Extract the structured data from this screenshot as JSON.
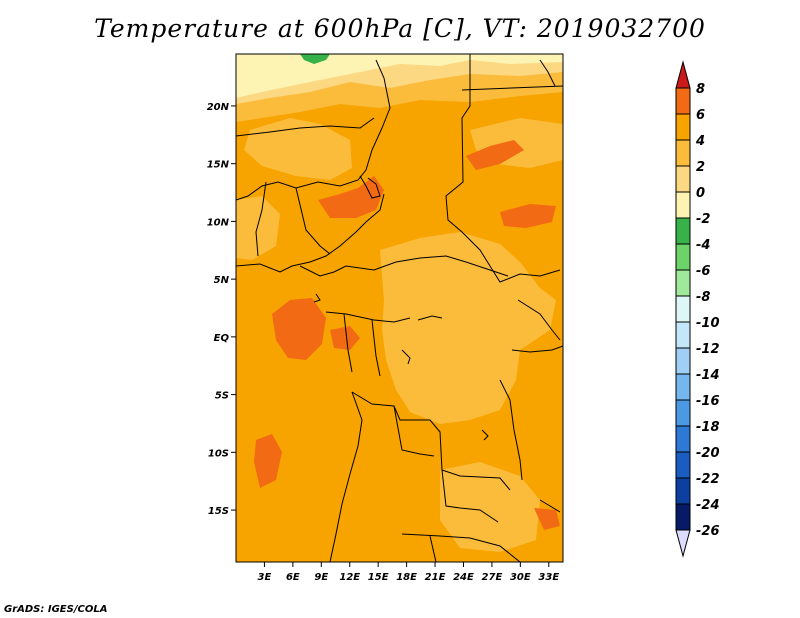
{
  "title": "Temperature at 600hPa [C], VT: 2019032700",
  "credit": "GrADS: IGES/COLA",
  "map": {
    "lon_range": [
      0,
      34.5
    ],
    "lat_range": [
      -19.5,
      24.5
    ],
    "lon_ticks": [
      {
        "value": 3,
        "label": "3E"
      },
      {
        "value": 6,
        "label": "6E"
      },
      {
        "value": 9,
        "label": "9E"
      },
      {
        "value": 12,
        "label": "12E"
      },
      {
        "value": 15,
        "label": "15E"
      },
      {
        "value": 18,
        "label": "18E"
      },
      {
        "value": 21,
        "label": "21E"
      },
      {
        "value": 24,
        "label": "24E"
      },
      {
        "value": 27,
        "label": "27E"
      },
      {
        "value": 30,
        "label": "30E"
      },
      {
        "value": 33,
        "label": "33E"
      }
    ],
    "lat_ticks": [
      {
        "value": 20,
        "label": "20N"
      },
      {
        "value": 15,
        "label": "15N"
      },
      {
        "value": 10,
        "label": "10N"
      },
      {
        "value": 5,
        "label": "5N"
      },
      {
        "value": 0,
        "label": "EQ"
      },
      {
        "value": -5,
        "label": "5S"
      },
      {
        "value": -10,
        "label": "10S"
      },
      {
        "value": -15,
        "label": "15S"
      }
    ]
  },
  "colorbar": {
    "labels": [
      "8",
      "6",
      "4",
      "2",
      "0",
      "-2",
      "-4",
      "-6",
      "-8",
      "-10",
      "-12",
      "-14",
      "-16",
      "-18",
      "-20",
      "-22",
      "-24",
      "-26"
    ],
    "colors": [
      "#e8301a",
      "#f26a14",
      "#f7a400",
      "#fbbc3c",
      "#fcd882",
      "#fdf4b4",
      "#37b24a",
      "#6bd36a",
      "#a0e89a",
      "#dff6f7",
      "#c4e6fa",
      "#9fcff5",
      "#76b6ee",
      "#4b98e3",
      "#2d79d5",
      "#1a5cc0",
      "#0c3fa0",
      "#061a66"
    ],
    "over_color": "#cc1a1a",
    "under_color": "#dcdcff"
  }
}
